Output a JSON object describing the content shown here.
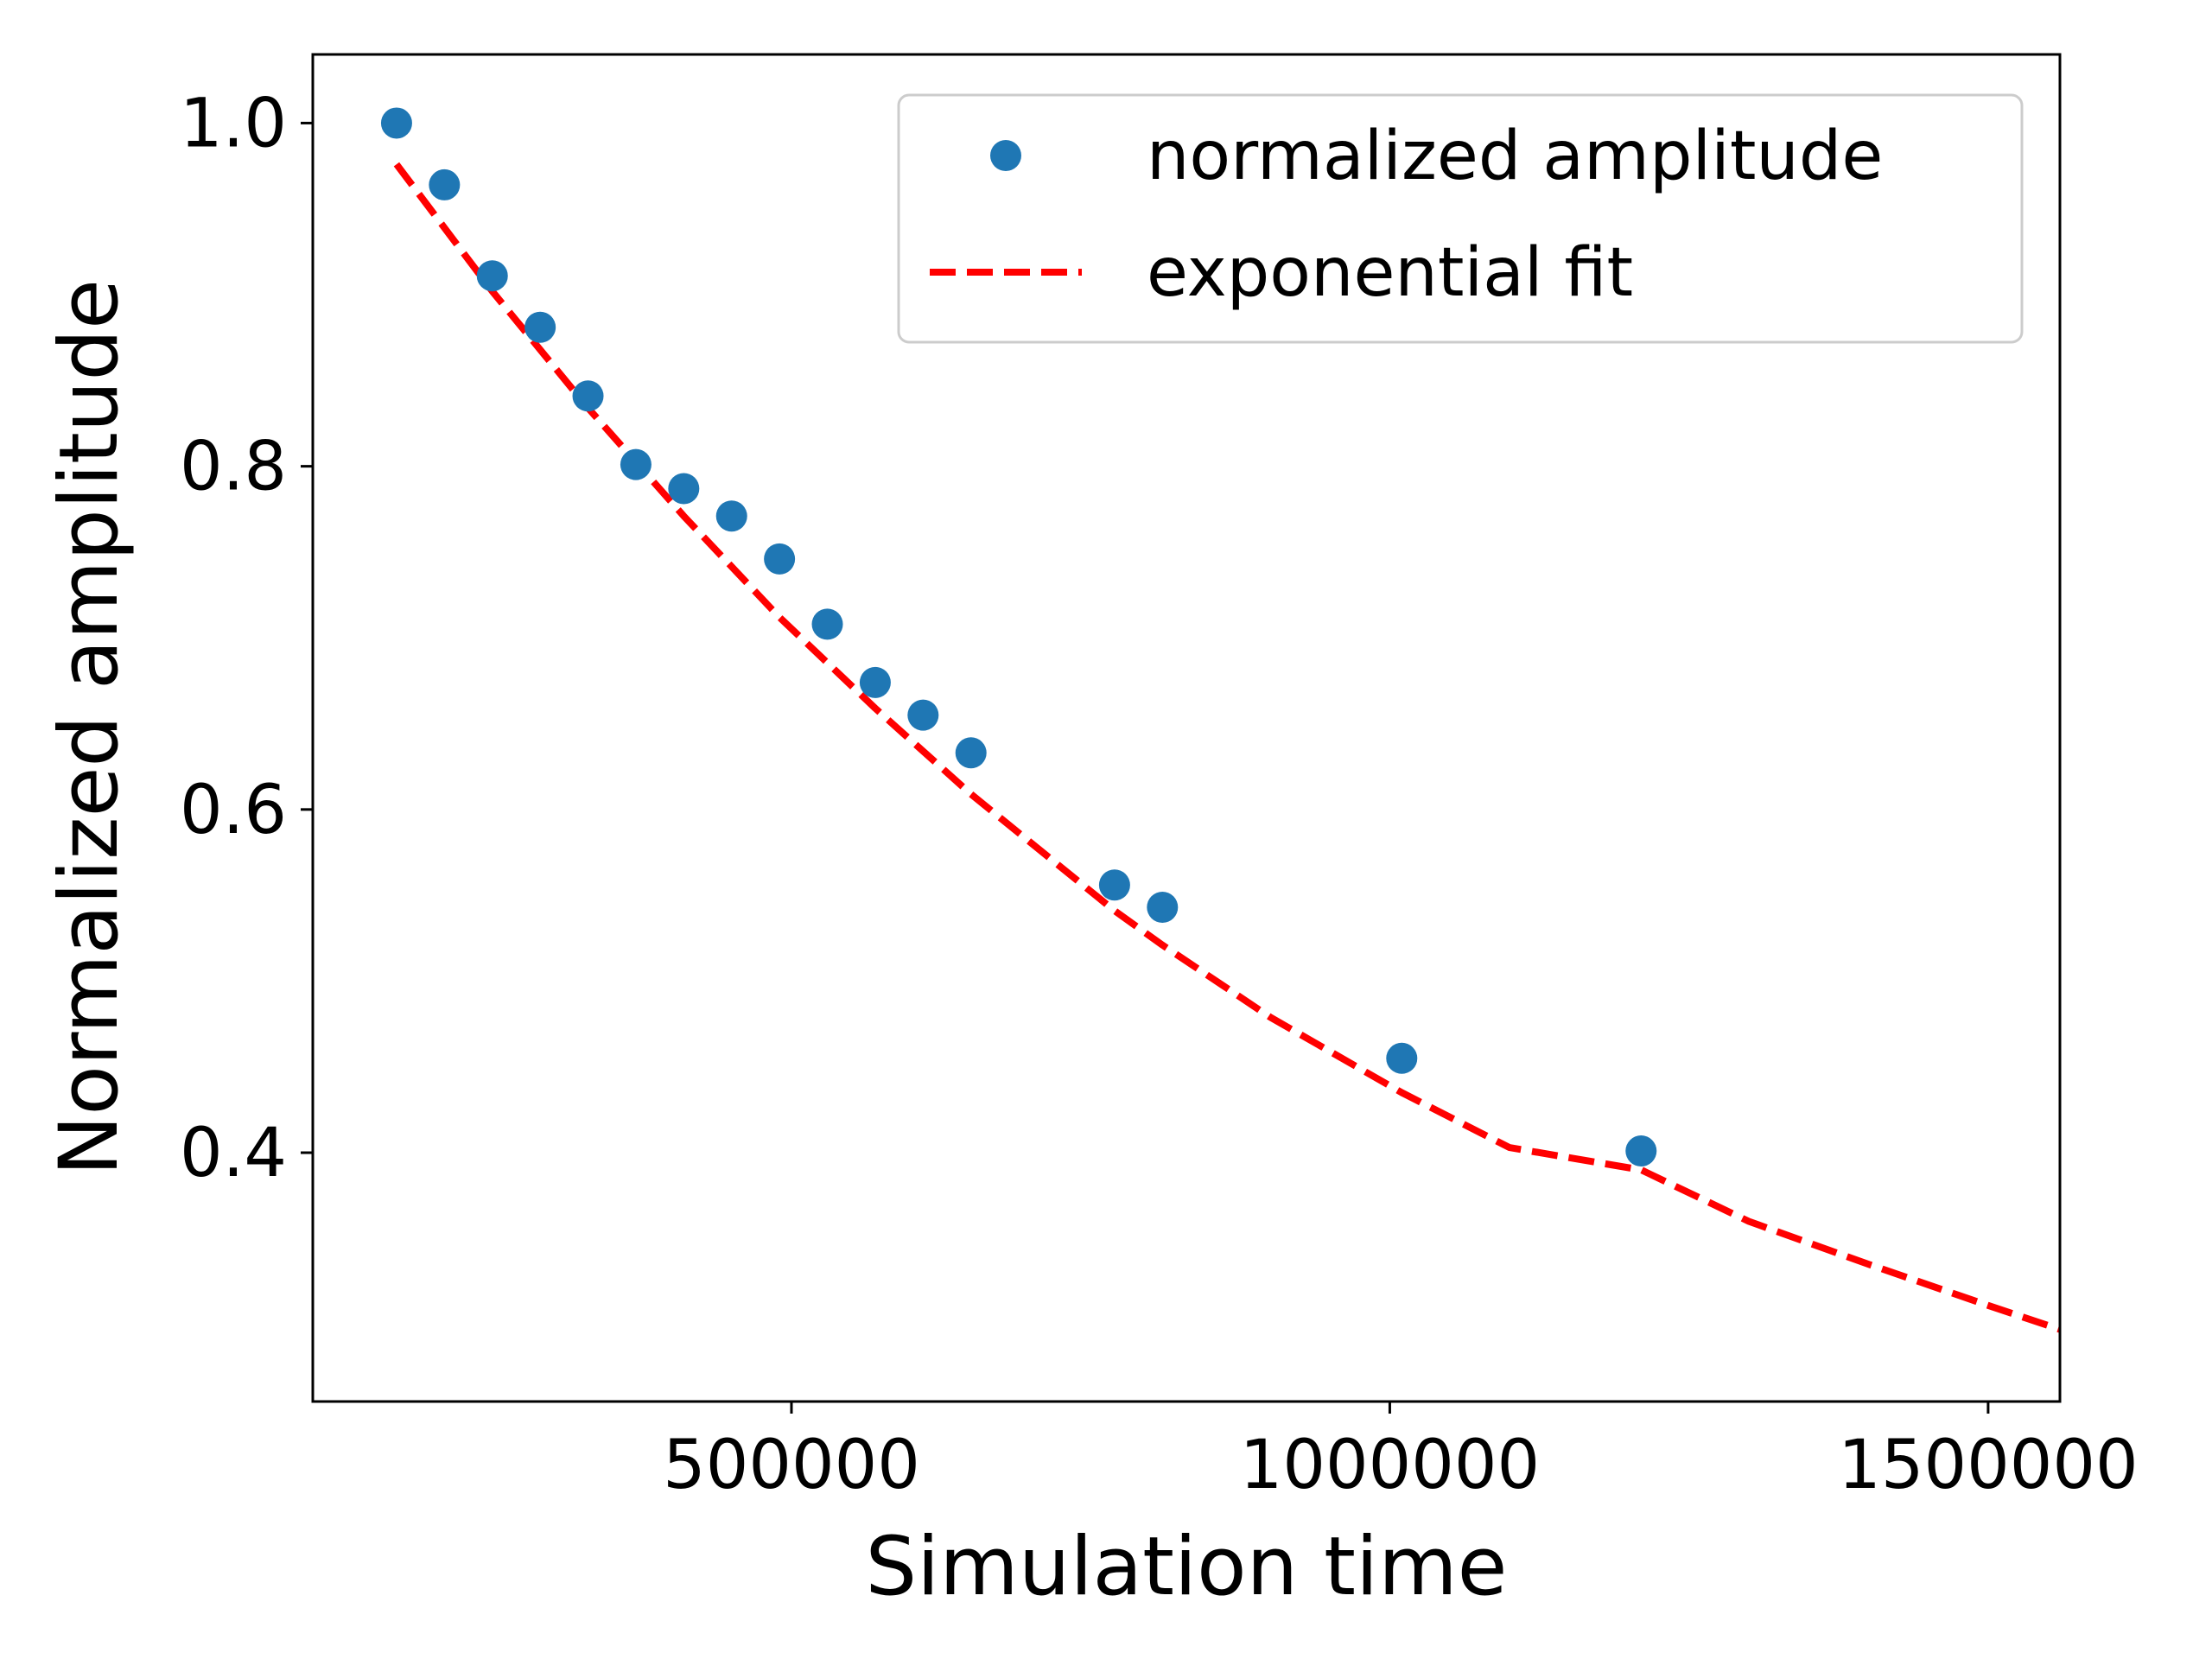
{
  "chart_data": {
    "type": "scatter",
    "title": "",
    "xlabel": "Simulation time",
    "ylabel": "Normalized amplitude",
    "xlim": [
      100000,
      1560000
    ],
    "ylim": [
      0.255,
      1.04
    ],
    "xticks": [
      500000,
      1000000,
      1500000
    ],
    "xtick_labels": [
      "500000",
      "1000000",
      "1500000"
    ],
    "yticks": [
      0.4,
      0.6,
      0.8,
      1.0
    ],
    "ytick_labels": [
      "0.4",
      "0.6",
      "0.8",
      "1.0"
    ],
    "grid": false,
    "legend_position": "top-right",
    "series": [
      {
        "name": "normalized amplitude",
        "kind": "points",
        "color": "#1f77b4",
        "x": [
          170000,
          210000,
          250000,
          290000,
          330000,
          370000,
          410000,
          450000,
          490000,
          530000,
          570000,
          610000,
          650000,
          770000,
          810000,
          1010000,
          1210000
        ],
        "y": [
          1.0,
          0.964,
          0.911,
          0.881,
          0.841,
          0.801,
          0.787,
          0.771,
          0.746,
          0.708,
          0.674,
          0.655,
          0.633,
          0.556,
          0.543,
          0.455,
          0.401
        ]
      },
      {
        "name": "exponential fit",
        "kind": "dashed-line",
        "color": "#ff0000",
        "x": [
          170000,
          250000,
          330000,
          410000,
          490000,
          570000,
          650000,
          770000,
          810000,
          900000,
          1010000,
          1100000,
          1210000,
          1300000,
          1400000,
          1500000,
          1560000
        ],
        "y": [
          0.976,
          0.902,
          0.834,
          0.771,
          0.712,
          0.659,
          0.609,
          0.541,
          0.521,
          0.479,
          0.435,
          0.403,
          0.39,
          0.36,
          0.335,
          0.311,
          0.297
        ]
      }
    ]
  }
}
